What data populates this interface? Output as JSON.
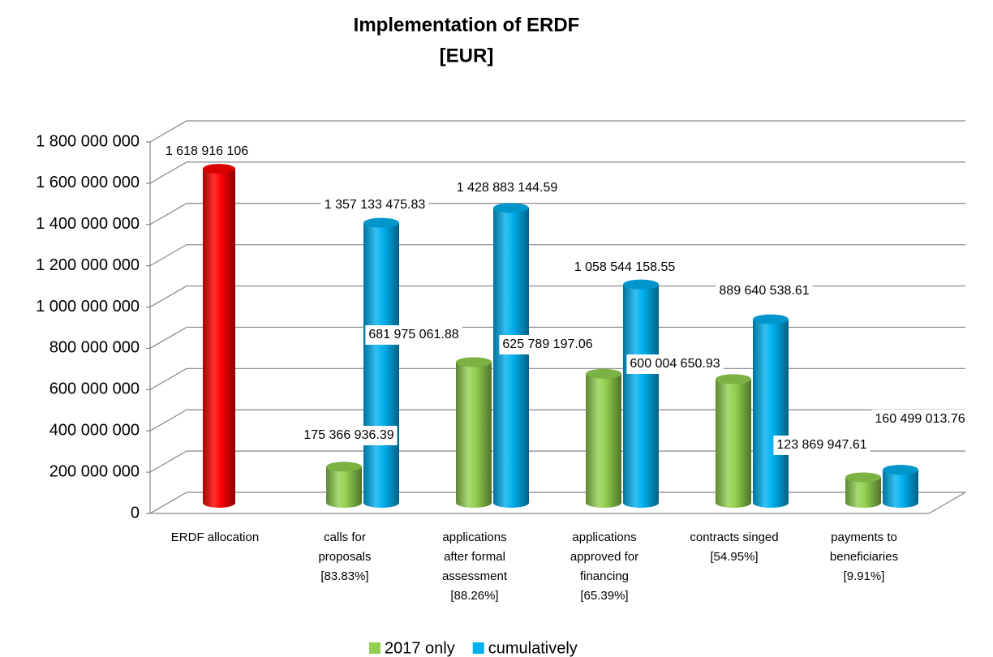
{
  "chart_data": {
    "type": "bar3d",
    "title": "Implementation of ERDF",
    "subtitle": "[EUR]",
    "categories": [
      [
        "ERDF allocation"
      ],
      [
        "calls for",
        "proposals",
        "[83.83%]"
      ],
      [
        "applications",
        "after formal",
        "assessment",
        "[88.26%]"
      ],
      [
        "applications",
        "approved for",
        "financing",
        "[65.39%]"
      ],
      [
        "contracts singed",
        "[54.95%]"
      ],
      [
        "payments to",
        "beneficiaries",
        "[9.91%]"
      ]
    ],
    "series": [
      {
        "name": "2017 only",
        "color": "#92d050",
        "values": [
          null,
          175366936.39,
          681975061.88,
          625789197.06,
          600004650.93,
          123869947.61
        ],
        "value_labels": [
          null,
          "175 366 936.39",
          "681 975 061.88",
          "625 789 197.06",
          "600 004 650.93",
          "123 869 947.61"
        ]
      },
      {
        "name": "cumulatively",
        "color": "#00b0f0",
        "point_colors": [
          "#ff0000",
          "#00b0f0",
          "#00b0f0",
          "#00b0f0",
          "#00b0f0",
          "#00b0f0"
        ],
        "values": [
          1618916106,
          1357133475.83,
          1428883144.59,
          1058544158.55,
          889640538.61,
          160499013.76
        ],
        "value_labels": [
          "1 618 916 106",
          "1 357 133 475.83",
          "1 428 883 144.59",
          "1 058 544 158.55",
          "889 640 538.61",
          "160 499 013.76"
        ]
      }
    ],
    "ylim": [
      0,
      1800000000
    ],
    "yticks": [
      0,
      {
        "value": 200000000,
        "label": "200 000 000"
      },
      {
        "value": 400000000,
        "label": "400 000 000"
      },
      {
        "value": 600000000,
        "label": "600 000 000"
      },
      {
        "value": 800000000,
        "label": "800 000 000"
      },
      {
        "value": 1000000000,
        "label": "1 000 000 000"
      },
      {
        "value": 1200000000,
        "label": "1 200 000 000"
      },
      {
        "value": 1400000000,
        "label": "1 400 000 000"
      },
      {
        "value": 1600000000,
        "label": "1 600 000 000"
      },
      {
        "value": 1800000000,
        "label": "1 800 000 000"
      }
    ],
    "grid": true,
    "legend": "bottom"
  }
}
